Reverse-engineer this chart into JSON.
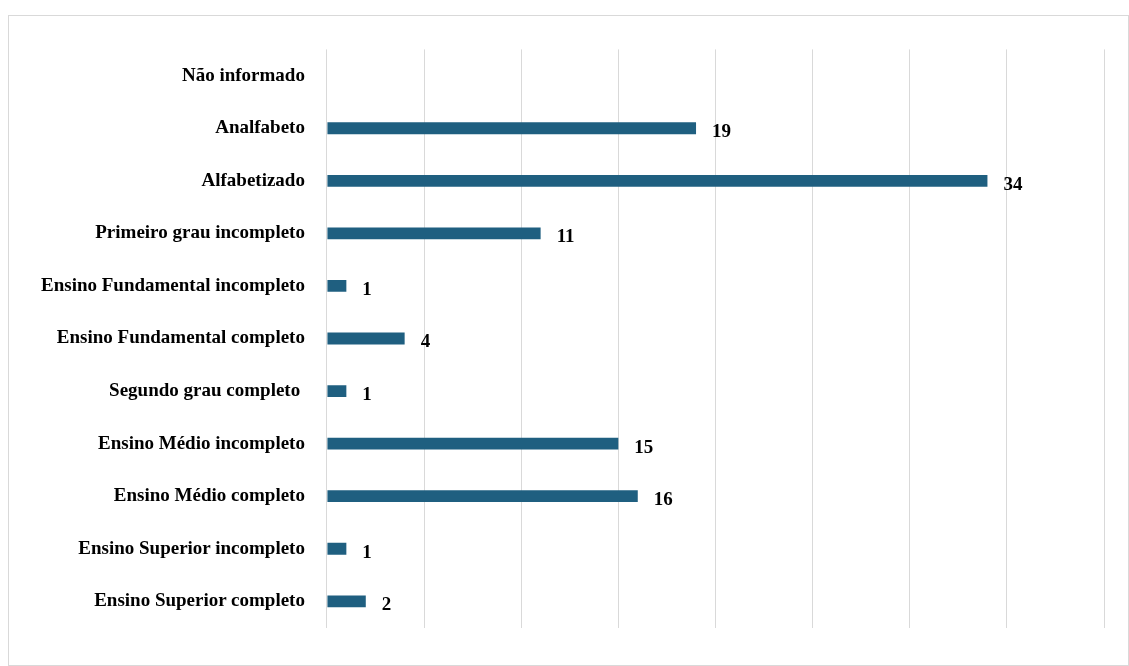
{
  "chart_data": {
    "type": "bar",
    "orientation": "horizontal",
    "categories": [
      "Não informado",
      "Analfabeto",
      "Alfabetizado",
      "Primeiro grau incompleto",
      "Ensino Fundamental incompleto",
      "Ensino Fundamental completo",
      "Segundo grau completo ",
      "Ensino Médio incompleto",
      "Ensino Médio completo",
      "Ensino Superior incompleto",
      "Ensino Superior completo"
    ],
    "values": [
      null,
      19,
      34,
      11,
      1,
      4,
      1,
      15,
      16,
      1,
      2
    ],
    "color": "#1f5f80",
    "xlim": [
      0,
      40
    ],
    "xticks": [
      {
        "value": 0,
        "label": null
      },
      {
        "value": 5,
        "label": null
      },
      {
        "value": 10,
        "label": null
      },
      {
        "value": 15,
        "label": null
      },
      {
        "value": 20,
        "label": null
      },
      {
        "value": 25,
        "label": null
      },
      {
        "value": 30,
        "label": null
      },
      {
        "value": 35,
        "label": null
      },
      {
        "value": 40,
        "label": null
      }
    ],
    "grid": "x",
    "tick_labels": "y",
    "data_labels": true,
    "legend": false
  }
}
